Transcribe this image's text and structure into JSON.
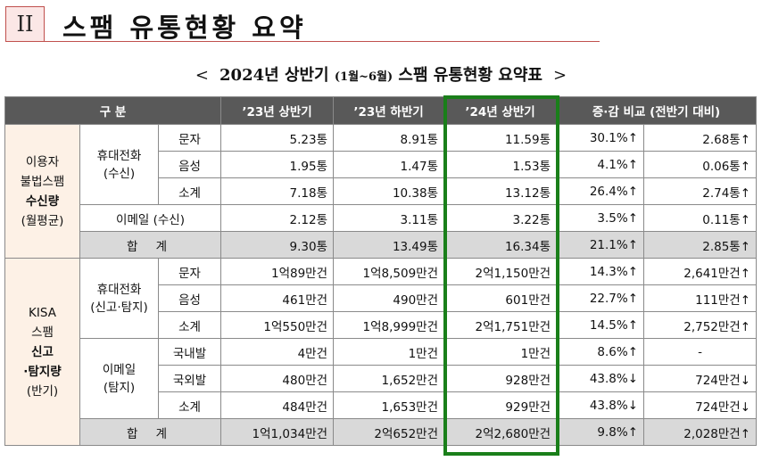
{
  "header": {
    "roman": "II",
    "title": "스팸 유통현황 요약"
  },
  "subtitle": {
    "open": "<",
    "main": "2024년 상반기",
    "period": "(1월~6월)",
    "rest": "스팸 유통현황 요약표",
    "close": ">"
  },
  "table": {
    "headers": [
      "구 분",
      "’23년 상반기",
      "’23년 하반기",
      "’24년 상반기",
      "증·감 비교 (전반기 대비)"
    ],
    "section1": {
      "label_lines": [
        "이용자",
        "불법스팸",
        "수신량",
        "(월평균)"
      ],
      "mobile_label": [
        "휴대전화",
        "(수신)"
      ],
      "rows": [
        {
          "label": "문자",
          "h23a": "5.23통",
          "h23b": "8.91통",
          "h24a": "11.59통",
          "pct": "30.1%↑",
          "diff": "2.68통↑"
        },
        {
          "label": "음성",
          "h23a": "1.95통",
          "h23b": "1.47통",
          "h24a": "1.53통",
          "pct": "4.1%↑",
          "diff": "0.06통↑"
        },
        {
          "label": "소계",
          "h23a": "7.18통",
          "h23b": "10.38통",
          "h24a": "13.12통",
          "pct": "26.4%↑",
          "diff": "2.74통↑"
        }
      ],
      "email": {
        "label": "이메일 (수신)",
        "h23a": "2.12통",
        "h23b": "3.11통",
        "h24a": "3.22통",
        "pct": "3.5%↑",
        "diff": "0.11통↑"
      },
      "total": {
        "label": "합 계",
        "h23a": "9.30통",
        "h23b": "13.49통",
        "h24a": "16.34통",
        "pct": "21.1%↑",
        "diff": "2.85통↑"
      }
    },
    "section2": {
      "label_lines": [
        "KISA",
        "스팸",
        "신고",
        "·탐지량",
        "(반기)"
      ],
      "mobile_label": [
        "휴대전화",
        "(신고·탐지)"
      ],
      "mobile_rows": [
        {
          "label": "문자",
          "h23a": "1억89만건",
          "h23b": "1억8,509만건",
          "h24a": "2억1,150만건",
          "pct": "14.3%↑",
          "diff": "2,641만건↑"
        },
        {
          "label": "음성",
          "h23a": "461만건",
          "h23b": "490만건",
          "h24a": "601만건",
          "pct": "22.7%↑",
          "diff": "111만건↑"
        },
        {
          "label": "소계",
          "h23a": "1억550만건",
          "h23b": "1억8,999만건",
          "h24a": "2억1,751만건",
          "pct": "14.5%↑",
          "diff": "2,752만건↑"
        }
      ],
      "email_label": [
        "이메일",
        "(탐지)"
      ],
      "email_rows": [
        {
          "label": "국내발",
          "h23a": "4만건",
          "h23b": "1만건",
          "h24a": "1만건",
          "pct": "8.6%↑",
          "diff": "-"
        },
        {
          "label": "국외발",
          "h23a": "480만건",
          "h23b": "1,652만건",
          "h24a": "928만건",
          "pct": "43.8%↓",
          "diff": "724만건↓"
        },
        {
          "label": "소계",
          "h23a": "484만건",
          "h23b": "1,653만건",
          "h24a": "929만건",
          "pct": "43.8%↓",
          "diff": "724만건↓"
        }
      ],
      "total": {
        "label": "합 계",
        "h23a": "1억1,034만건",
        "h23b": "2억652만건",
        "h24a": "2억2,680만건",
        "pct": "9.8%↑",
        "diff": "2,028만건↑"
      }
    }
  }
}
